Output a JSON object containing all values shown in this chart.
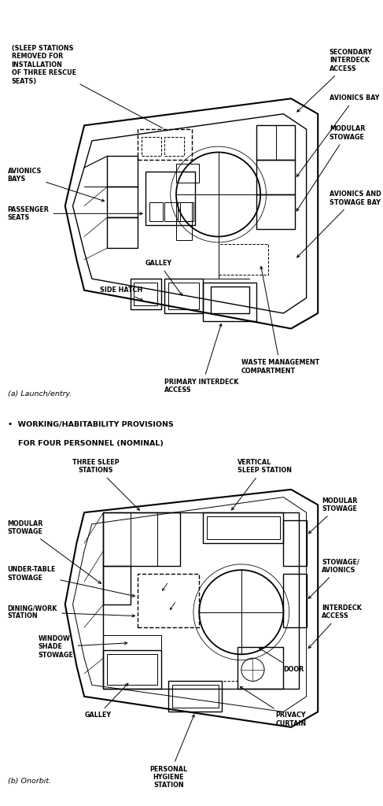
{
  "bg_color": "#ffffff",
  "line_color": "#000000",
  "font_family": "DejaVu Sans",
  "title_a": "(a) Launch/entry.",
  "title_b": "(b) Onorbit.",
  "bullet_text_1": "•  WORKING/HABITABILITY PROVISIONS",
  "bullet_text_2": "    FOR FOUR PERSONNEL (NOMINAL)"
}
